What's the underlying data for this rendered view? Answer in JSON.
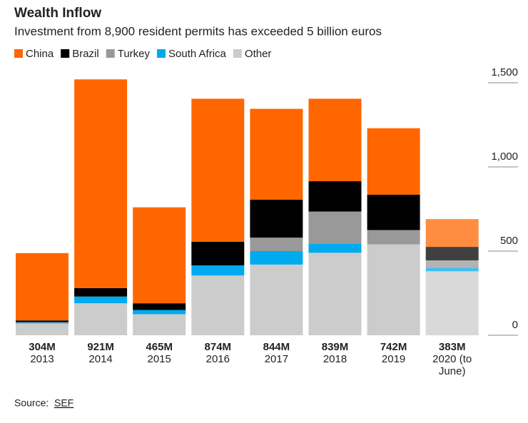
{
  "chart_data": {
    "type": "stacked_bar",
    "title": "Wealth Inflow",
    "subtitle": "Investment from 8,900 resident permits has exceeded 5 billion euros",
    "categories": [
      "2013",
      "2014",
      "2015",
      "2016",
      "2017",
      "2018",
      "2019",
      "2020 (to June)"
    ],
    "category_labels": [
      "304M",
      "921M",
      "465M",
      "874M",
      "844M",
      "839M",
      "742M",
      "383M"
    ],
    "series": [
      {
        "name": "China",
        "color": "#ff6600",
        "values": [
          400,
          1240,
          570,
          850,
          540,
          490,
          395,
          165
        ]
      },
      {
        "name": "Brazil",
        "color": "#000000",
        "values": [
          10,
          50,
          40,
          140,
          225,
          180,
          210,
          80
        ]
      },
      {
        "name": "Turkey",
        "color": "#999999",
        "values": [
          3,
          0,
          0,
          0,
          80,
          190,
          85,
          45
        ]
      },
      {
        "name": "South Africa",
        "color": "#00aaee",
        "values": [
          5,
          40,
          25,
          60,
          80,
          55,
          0,
          20
        ]
      },
      {
        "name": "Other",
        "color": "#cccccc",
        "values": [
          70,
          190,
          125,
          355,
          420,
          490,
          540,
          380
        ]
      }
    ],
    "ylim": [
      0,
      1500
    ],
    "yticks": [
      0,
      500,
      {
        "value": 1000,
        "label": "1,000"
      },
      {
        "value": 1500,
        "label": "1,500"
      }
    ],
    "source": {
      "label": "Source:",
      "name": "SEF"
    }
  }
}
